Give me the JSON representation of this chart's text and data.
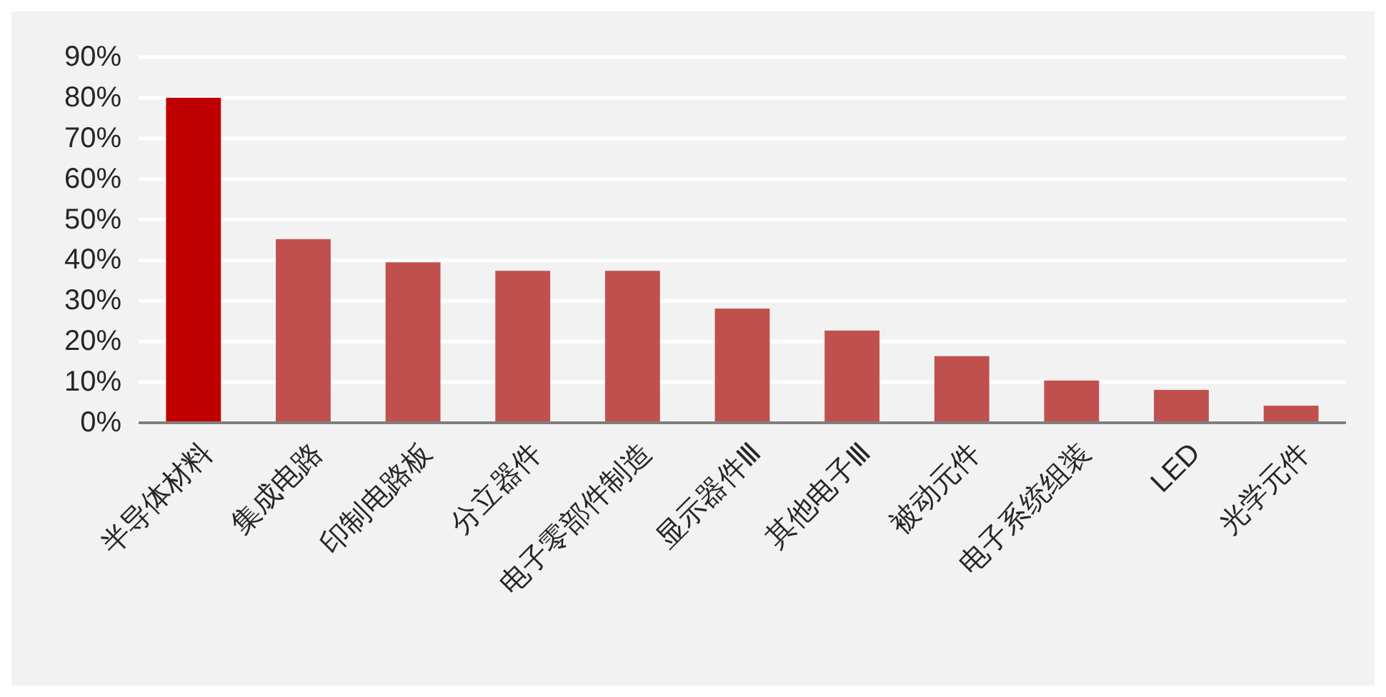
{
  "chart_data": {
    "type": "bar",
    "categories": [
      "半导体材料",
      "集成电路",
      "印制电路板",
      "分立器件",
      "电子零部件制造",
      "显示器件Ⅲ",
      "其他电子Ⅲ",
      "被动元件",
      "电子系统组装",
      "LED",
      "光学元件"
    ],
    "values": [
      80,
      45.2,
      39.5,
      37.4,
      37.4,
      28.1,
      22.7,
      16.4,
      10.4,
      8.1,
      4.2
    ],
    "colors": [
      "#c00000",
      "#c0504d",
      "#c0504d",
      "#c0504d",
      "#c0504d",
      "#c0504d",
      "#c0504d",
      "#c0504d",
      "#c0504d",
      "#c0504d",
      "#c0504d"
    ],
    "ylim": [
      0,
      90
    ],
    "yticks": [
      {
        "value": 0,
        "label": "0%"
      },
      {
        "value": 10,
        "label": "10%"
      },
      {
        "value": 20,
        "label": "20%"
      },
      {
        "value": 30,
        "label": "30%"
      },
      {
        "value": 40,
        "label": "40%"
      },
      {
        "value": 50,
        "label": "50%"
      },
      {
        "value": 60,
        "label": "60%"
      },
      {
        "value": 70,
        "label": "70%"
      },
      {
        "value": 80,
        "label": "80%"
      },
      {
        "value": 90,
        "label": "90%"
      }
    ],
    "grid": "y"
  }
}
